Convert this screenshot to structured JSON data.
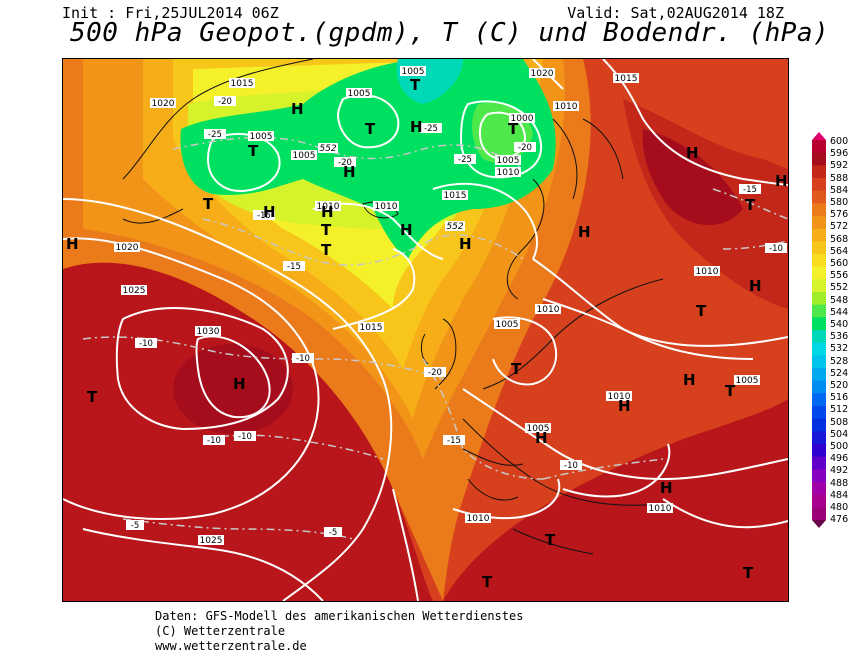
{
  "header": {
    "init": "Init : Fri,25JUL2014 06Z",
    "valid": "Valid: Sat,02AUG2014 18Z",
    "title": "500 hPa Geopot.(gpdm), T (C) und Bodendr. (hPa)"
  },
  "colorbar": {
    "levels": [
      "600",
      "596",
      "592",
      "588",
      "584",
      "580",
      "576",
      "572",
      "568",
      "564",
      "560",
      "556",
      "552",
      "548",
      "544",
      "540",
      "536",
      "532",
      "528",
      "524",
      "520",
      "516",
      "512",
      "508",
      "504",
      "500",
      "496",
      "492",
      "488",
      "484",
      "480",
      "476"
    ],
    "colors": [
      "#e0006a",
      "#b8002e",
      "#a50d1c",
      "#c2271a",
      "#d6401c",
      "#e05a1e",
      "#ea7a1a",
      "#f29418",
      "#f6ad18",
      "#f8c51a",
      "#f7dc20",
      "#f4f02a",
      "#d6f22a",
      "#a0ee2a",
      "#4ee84a",
      "#00e060",
      "#00d9b8",
      "#00d8e6",
      "#00c4ec",
      "#00a8f0",
      "#008cf0",
      "#0068f0",
      "#0048ec",
      "#0030e0",
      "#1818d8",
      "#3000d0",
      "#6000c8",
      "#8800c0",
      "#a000a8",
      "#aa0090",
      "#9a0078",
      "#68004a"
    ]
  },
  "map": {
    "pressure_labels": [
      "1015",
      "1020",
      "1005",
      "1005",
      "1000",
      "1005",
      "1010",
      "1020",
      "1015",
      "1010",
      "1005",
      "1010",
      "1015",
      "1005",
      "1010",
      "1020",
      "1025",
      "1030",
      "1015",
      "1010",
      "1005",
      "1010",
      "1005",
      "1010",
      "1005",
      "1010",
      "1025",
      "552",
      "552",
      "1010"
    ],
    "temperature_labels": [
      "-20",
      "-25",
      "-20",
      "-25",
      "-25",
      "-20",
      "-15",
      "-15",
      "-10",
      "-10",
      "-10",
      "-10",
      "-20",
      "-15",
      "-10",
      "-5",
      "-5",
      "-15",
      "-10"
    ],
    "centers": {
      "highs": [
        "H",
        "H",
        "H",
        "H",
        "H",
        "H",
        "H",
        "H",
        "H",
        "H",
        "H",
        "H",
        "H",
        "H",
        "H",
        "H",
        "H"
      ],
      "lows": [
        "T",
        "T",
        "T",
        "T",
        "T",
        "T",
        "T",
        "T",
        "T",
        "T",
        "T",
        "T",
        "T",
        "T",
        "T"
      ]
    }
  },
  "footer": {
    "line1": "Daten: GFS-Modell des amerikanischen Wetterdienstes",
    "line2": "(C) Wetterzentrale",
    "line3": "www.wetterzentrale.de"
  }
}
